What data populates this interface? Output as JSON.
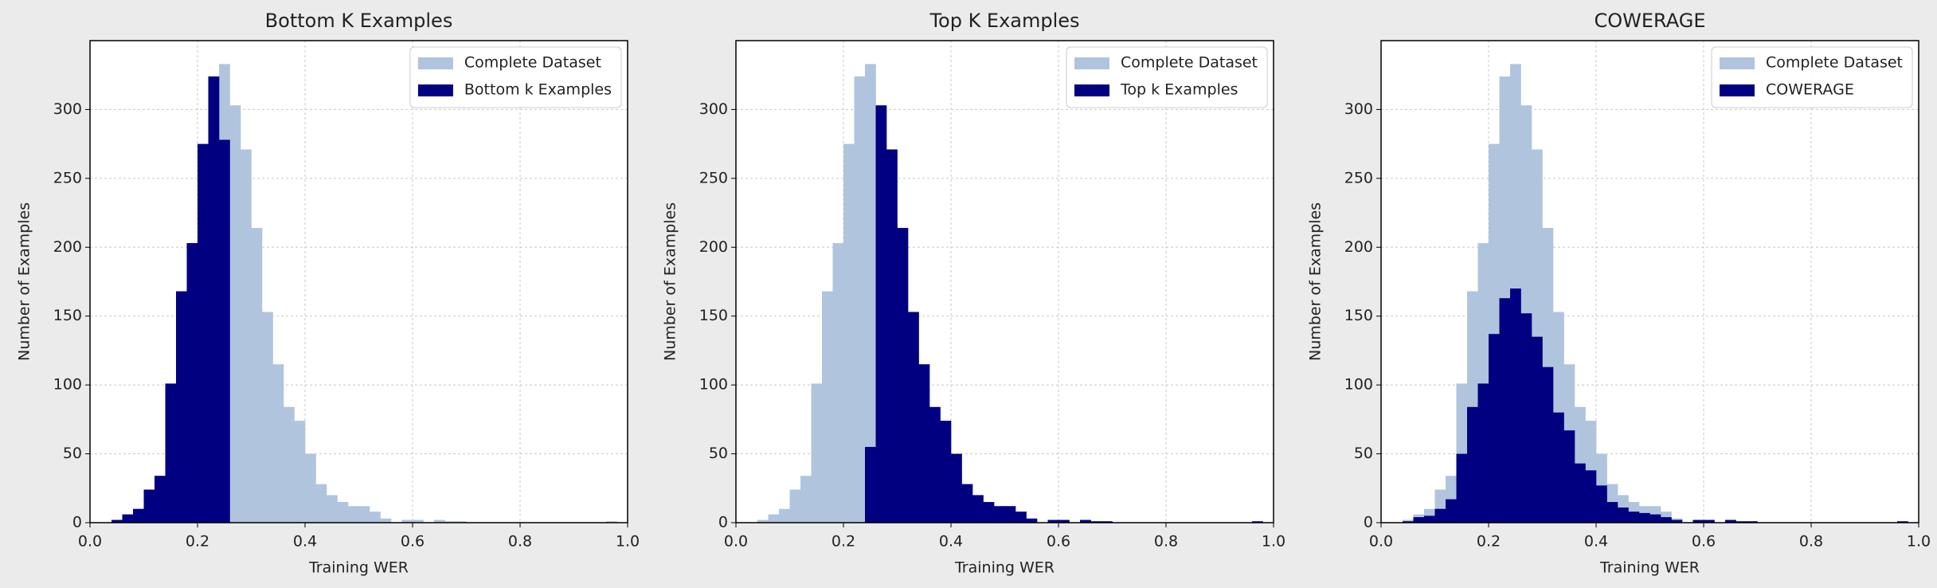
{
  "chart_data": [
    {
      "type": "histogram",
      "title": "Bottom K Examples",
      "xlabel": "Training WER",
      "ylabel": "Number of Examples",
      "bins": [
        0.04,
        0.06,
        0.08,
        0.1,
        0.12,
        0.14,
        0.16,
        0.18,
        0.2,
        0.22,
        0.24,
        0.26,
        0.28,
        0.3,
        0.32,
        0.34,
        0.36,
        0.38,
        0.4,
        0.42,
        0.44,
        0.46,
        0.48,
        0.5,
        0.52,
        0.54,
        0.56,
        0.58,
        0.6,
        0.62,
        0.64,
        0.66,
        0.68,
        0.7,
        0.72,
        0.74,
        0.76,
        0.78,
        0.8,
        0.82,
        0.84,
        0.86,
        0.88,
        0.9,
        0.92,
        0.94,
        0.96,
        0.98
      ],
      "series": [
        {
          "name": "Complete Dataset",
          "color": "#b0c4de",
          "values": [
            2,
            6,
            10,
            24,
            34,
            101,
            168,
            203,
            275,
            324,
            333,
            303,
            271,
            214,
            153,
            115,
            84,
            74,
            50,
            28,
            20,
            15,
            12,
            12,
            8,
            3,
            0,
            2,
            2,
            0,
            2,
            1,
            1,
            0,
            0,
            0,
            0,
            0,
            0,
            0,
            0,
            0,
            0,
            0,
            0,
            0,
            1
          ]
        },
        {
          "name": "Bottom k Examples",
          "color": "#000080",
          "values": [
            2,
            6,
            10,
            24,
            34,
            101,
            168,
            203,
            275,
            324,
            278,
            0,
            0,
            0,
            0,
            0,
            0,
            0,
            0,
            0,
            0,
            0,
            0,
            0,
            0,
            0,
            0,
            0,
            0,
            0,
            0,
            0,
            0,
            0,
            0,
            0,
            0,
            0,
            0,
            0,
            0,
            0,
            0,
            0,
            0,
            0,
            0
          ]
        }
      ],
      "xlim": [
        0,
        1
      ],
      "ylim": [
        0,
        350
      ],
      "xticks": [
        {
          "value": 0,
          "label": "0.0"
        },
        0.2,
        0.4,
        0.6,
        0.8,
        {
          "value": 1,
          "label": "1.0"
        }
      ],
      "yticks": [
        0,
        50,
        100,
        150,
        200,
        250,
        300
      ],
      "grid": true,
      "legend": "upper right"
    },
    {
      "type": "histogram",
      "title": "Top K Examples",
      "xlabel": "Training WER",
      "ylabel": "Number of Examples",
      "bins": [
        0.04,
        0.06,
        0.08,
        0.1,
        0.12,
        0.14,
        0.16,
        0.18,
        0.2,
        0.22,
        0.24,
        0.26,
        0.28,
        0.3,
        0.32,
        0.34,
        0.36,
        0.38,
        0.4,
        0.42,
        0.44,
        0.46,
        0.48,
        0.5,
        0.52,
        0.54,
        0.56,
        0.58,
        0.6,
        0.62,
        0.64,
        0.66,
        0.68,
        0.7,
        0.72,
        0.74,
        0.76,
        0.78,
        0.8,
        0.82,
        0.84,
        0.86,
        0.88,
        0.9,
        0.92,
        0.94,
        0.96,
        0.98
      ],
      "series": [
        {
          "name": "Complete Dataset",
          "color": "#b0c4de",
          "values": [
            2,
            6,
            10,
            24,
            34,
            101,
            168,
            203,
            275,
            324,
            333,
            303,
            271,
            214,
            153,
            115,
            84,
            74,
            50,
            28,
            20,
            15,
            12,
            12,
            8,
            3,
            0,
            2,
            2,
            0,
            2,
            1,
            1,
            0,
            0,
            0,
            0,
            0,
            0,
            0,
            0,
            0,
            0,
            0,
            0,
            0,
            1
          ]
        },
        {
          "name": "Top k Examples",
          "color": "#000080",
          "values": [
            0,
            0,
            0,
            0,
            0,
            0,
            0,
            0,
            0,
            0,
            55,
            303,
            271,
            214,
            153,
            115,
            84,
            74,
            50,
            28,
            20,
            15,
            12,
            12,
            8,
            3,
            0,
            2,
            2,
            0,
            2,
            1,
            1,
            0,
            0,
            0,
            0,
            0,
            0,
            0,
            0,
            0,
            0,
            0,
            0,
            0,
            1
          ]
        }
      ],
      "xlim": [
        0,
        1
      ],
      "ylim": [
        0,
        350
      ],
      "xticks": [
        {
          "value": 0,
          "label": "0.0"
        },
        0.2,
        0.4,
        0.6,
        0.8,
        {
          "value": 1,
          "label": "1.0"
        }
      ],
      "yticks": [
        0,
        50,
        100,
        150,
        200,
        250,
        300
      ],
      "grid": true,
      "legend": "upper right"
    },
    {
      "type": "histogram",
      "title": "COWERAGE",
      "xlabel": "Training WER",
      "ylabel": "Number of Examples",
      "bins": [
        0.04,
        0.06,
        0.08,
        0.1,
        0.12,
        0.14,
        0.16,
        0.18,
        0.2,
        0.22,
        0.24,
        0.26,
        0.28,
        0.3,
        0.32,
        0.34,
        0.36,
        0.38,
        0.4,
        0.42,
        0.44,
        0.46,
        0.48,
        0.5,
        0.52,
        0.54,
        0.56,
        0.58,
        0.6,
        0.62,
        0.64,
        0.66,
        0.68,
        0.7,
        0.72,
        0.74,
        0.76,
        0.78,
        0.8,
        0.82,
        0.84,
        0.86,
        0.88,
        0.9,
        0.92,
        0.94,
        0.96,
        0.98
      ],
      "series": [
        {
          "name": "Complete Dataset",
          "color": "#b0c4de",
          "values": [
            2,
            6,
            10,
            24,
            34,
            101,
            168,
            203,
            275,
            324,
            333,
            303,
            271,
            214,
            153,
            115,
            84,
            74,
            50,
            28,
            20,
            15,
            12,
            12,
            8,
            3,
            0,
            2,
            2,
            0,
            2,
            1,
            1,
            0,
            0,
            0,
            0,
            0,
            0,
            0,
            0,
            0,
            0,
            0,
            0,
            0,
            1
          ]
        },
        {
          "name": "COWERAGE",
          "color": "#000080",
          "values": [
            1,
            4,
            5,
            10,
            17,
            50,
            84,
            101,
            137,
            163,
            170,
            152,
            135,
            113,
            80,
            67,
            43,
            38,
            27,
            15,
            11,
            8,
            7,
            6,
            4,
            2,
            0,
            2,
            2,
            0,
            2,
            1,
            1,
            0,
            0,
            0,
            0,
            0,
            0,
            0,
            0,
            0,
            0,
            0,
            0,
            0,
            1
          ]
        }
      ],
      "xlim": [
        0,
        1
      ],
      "ylim": [
        0,
        350
      ],
      "xticks": [
        {
          "value": 0,
          "label": "0.0"
        },
        0.2,
        0.4,
        0.6,
        0.8,
        {
          "value": 1,
          "label": "1.0"
        }
      ],
      "yticks": [
        0,
        50,
        100,
        150,
        200,
        250,
        300
      ],
      "grid": true,
      "legend": "upper right"
    }
  ]
}
